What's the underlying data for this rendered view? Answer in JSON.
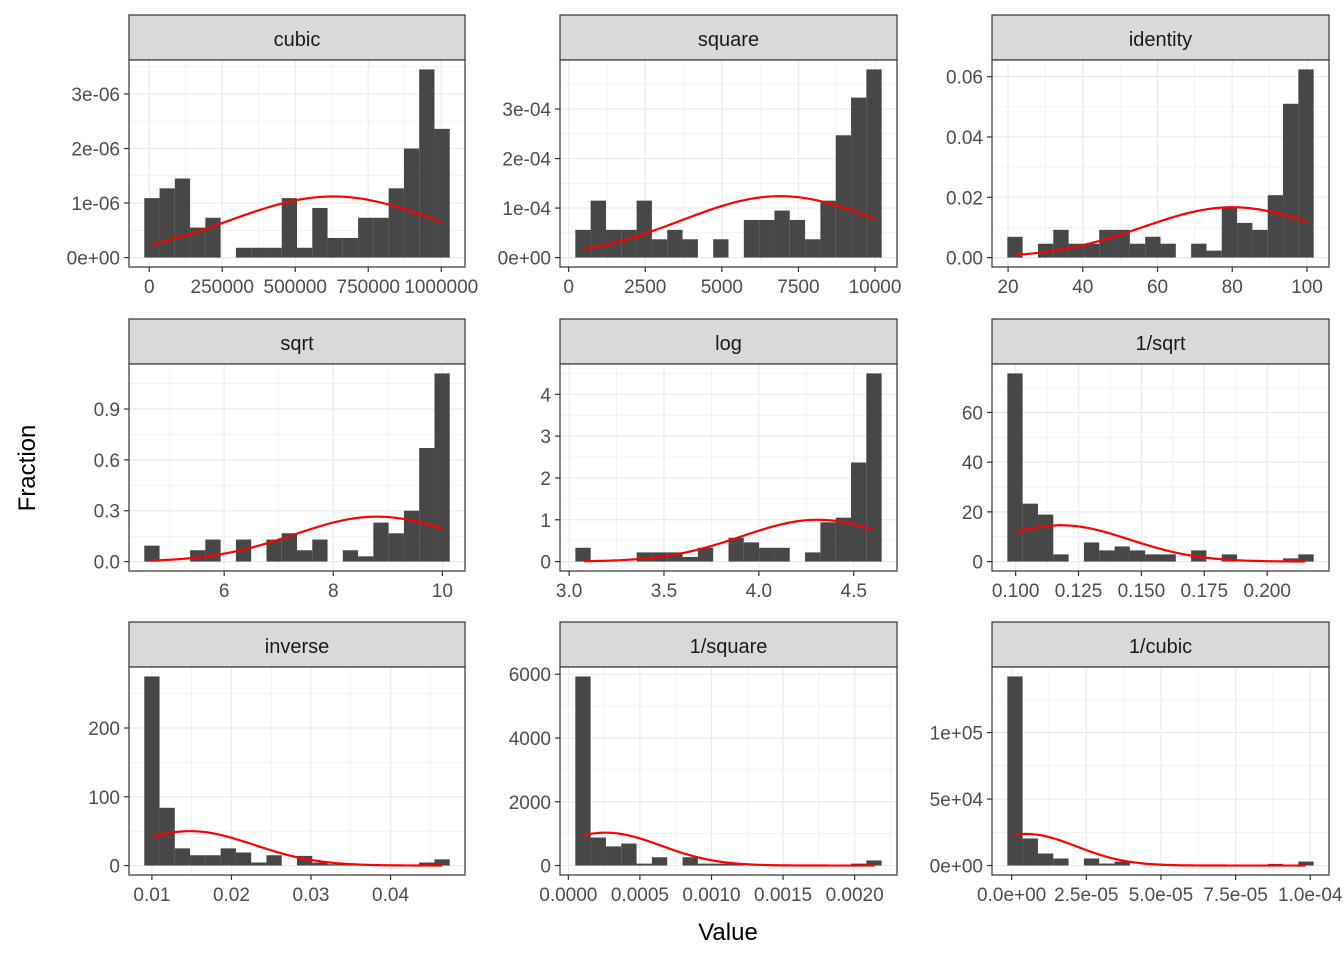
{
  "figure": {
    "xlabel": "Value",
    "ylabel": "Fraction",
    "colors": {
      "bar": "#474747",
      "curve": "#FF0000",
      "strip": "#D9D9D9",
      "grid": "#EBEBEB",
      "border": "#333333"
    }
  },
  "chart_data": [
    {
      "type": "bar",
      "title": "cubic",
      "bin_start": -17000,
      "bin_width": 52300,
      "values": [
        1.09e-06,
        1.27e-06,
        1.45e-06,
        5.5e-07,
        7.3e-07,
        0,
        1.8e-07,
        1.8e-07,
        1.8e-07,
        1.09e-06,
        1.8e-07,
        9.1e-07,
        3.6e-07,
        3.6e-07,
        7.3e-07,
        7.3e-07,
        1.27e-06,
        2e-06,
        3.45e-06,
        2.36e-06
      ],
      "xlim": [
        -69300,
        1081300
      ],
      "ylim": [
        -1.725e-07,
        3.6225e-06
      ],
      "x_ticks": [
        0,
        250000,
        500000,
        750000,
        1000000
      ],
      "x_tick_labels": [
        "0",
        "250000",
        "500000",
        "750000",
        "1000000"
      ],
      "y_ticks": [
        0,
        1e-06,
        2e-06,
        3e-06
      ],
      "y_tick_labels": [
        "0e+00",
        "1e-06",
        "2e-06",
        "3e-06"
      ],
      "normal_curve": {
        "mean": 630000,
        "sd": 356000,
        "from": 9000,
        "to": 1000000
      },
      "grid": true
    },
    {
      "type": "bar",
      "title": "square",
      "bin_start": 217,
      "bin_width": 500,
      "values": [
        5.6e-05,
        0.000115,
        5.6e-05,
        5.6e-05,
        0.000115,
        3.7e-05,
        5.6e-05,
        3.7e-05,
        0,
        3.7e-05,
        0,
        7.6e-05,
        7.6e-05,
        9.5e-05,
        7.6e-05,
        3.7e-05,
        0.000115,
        0.000247,
        0.000323,
        0.00038
      ],
      "xlim": [
        -283,
        10717
      ],
      "ylim": [
        -1.9e-05,
        0.000399
      ],
      "x_ticks": [
        0,
        2500,
        5000,
        7500,
        10000
      ],
      "x_tick_labels": [
        "0",
        "2500",
        "5000",
        "7500",
        "10000"
      ],
      "y_ticks": [
        0,
        0.0001,
        0.0002,
        0.0003
      ],
      "y_tick_labels": [
        "0e+00",
        "1e-04",
        "2e-04",
        "3e-04"
      ],
      "normal_curve": {
        "mean": 6900,
        "sd": 3217,
        "from": 500,
        "to": 10000
      },
      "grid": true
    },
    {
      "type": "bar",
      "title": "identity",
      "bin_start": 19.8,
      "bin_width": 4.1,
      "values": [
        0.0069,
        0,
        0.0046,
        0.0092,
        0.0046,
        0.0046,
        0.0092,
        0.0092,
        0.0046,
        0.0069,
        0.0046,
        0,
        0.0046,
        0.0023,
        0.0165,
        0.0115,
        0.0092,
        0.0207,
        0.051,
        0.0624
      ],
      "xlim": [
        15.7,
        105.9
      ],
      "ylim": [
        -0.00312,
        0.06552
      ],
      "x_ticks": [
        20,
        40,
        60,
        80,
        100
      ],
      "x_tick_labels": [
        "20",
        "40",
        "60",
        "80",
        "100"
      ],
      "y_ticks": [
        0,
        0.02,
        0.04,
        0.06
      ],
      "y_tick_labels": [
        "0.00",
        "0.02",
        "0.04",
        "0.06"
      ],
      "normal_curve": {
        "mean": 80,
        "sd": 23.9,
        "from": 22,
        "to": 100
      },
      "grid": true
    },
    {
      "type": "bar",
      "title": "sqrt",
      "bin_start": 4.535,
      "bin_width": 0.28,
      "values": [
        0.094,
        0,
        0,
        0.067,
        0.13,
        0,
        0.13,
        0,
        0.13,
        0.167,
        0.067,
        0.13,
        0,
        0.067,
        0.031,
        0.23,
        0.167,
        0.3,
        0.67,
        1.11
      ],
      "xlim": [
        4.255,
        10.415
      ],
      "ylim": [
        -0.0555,
        1.1655
      ],
      "x_ticks": [
        6,
        8,
        10
      ],
      "x_tick_labels": [
        "6",
        "8",
        "10"
      ],
      "y_ticks": [
        0,
        0.3,
        0.6,
        0.9
      ],
      "y_tick_labels": [
        "0.0",
        "0.3",
        "0.6",
        "0.9"
      ],
      "normal_curve": {
        "mean": 8.8,
        "sd": 1.505,
        "from": 4.64,
        "to": 10
      },
      "grid": true
    },
    {
      "type": "bar",
      "title": "log",
      "bin_start": 3.033,
      "bin_width": 0.0807,
      "values": [
        0.33,
        0,
        0,
        0,
        0.22,
        0.22,
        0.22,
        0.11,
        0.33,
        0,
        0.57,
        0.46,
        0.33,
        0.33,
        0,
        0.22,
        0.94,
        1.05,
        2.37,
        4.5
      ],
      "xlim": [
        2.952,
        4.728
      ],
      "ylim": [
        -0.225,
        4.725
      ],
      "x_ticks": [
        3.0,
        3.5,
        4.0,
        4.5
      ],
      "x_tick_labels": [
        "3.0",
        "3.5",
        "4.0",
        "4.5"
      ],
      "y_ticks": [
        0,
        1,
        2,
        3,
        4
      ],
      "y_tick_labels": [
        "0",
        "1",
        "2",
        "3",
        "4"
      ],
      "normal_curve": {
        "mean": 4.31,
        "sd": 0.399,
        "from": 3.08,
        "to": 4.6
      },
      "grid": true
    },
    {
      "type": "bar",
      "title": "1/sqrt",
      "bin_start": 0.0967,
      "bin_width": 0.00609,
      "values": [
        75.7,
        23.3,
        18.9,
        2.9,
        0,
        7.7,
        4.5,
        6.1,
        4.5,
        2.9,
        2.9,
        0,
        4.5,
        0,
        2.9,
        0,
        0,
        0,
        1.3,
        2.9
      ],
      "xlim": [
        0.0906,
        0.2246
      ],
      "ylim": [
        -3.785,
        79.485
      ],
      "x_ticks": [
        0.1,
        0.125,
        0.15,
        0.175,
        0.2
      ],
      "x_tick_labels": [
        "0.100",
        "0.125",
        "0.150",
        "0.175",
        "0.200"
      ],
      "y_ticks": [
        0,
        20,
        40,
        60
      ],
      "y_tick_labels": [
        "0",
        "20",
        "40",
        "60"
      ],
      "normal_curve": {
        "mean": 0.118,
        "sd": 0.0273,
        "from": 0.1,
        "to": 0.215
      },
      "grid": true
    },
    {
      "type": "bar",
      "title": "inverse",
      "bin_start": 0.00904,
      "bin_width": 0.00192,
      "values": [
        275,
        84,
        25,
        15,
        15,
        25,
        19,
        4.4,
        15,
        0,
        14,
        4.4,
        2,
        2,
        0,
        0,
        0,
        0,
        4.4,
        9
      ],
      "xlim": [
        0.00712,
        0.04936
      ],
      "ylim": [
        -13.75,
        288.75
      ],
      "x_ticks": [
        0.01,
        0.02,
        0.03,
        0.04
      ],
      "x_tick_labels": [
        "0.01",
        "0.02",
        "0.03",
        "0.04"
      ],
      "y_ticks": [
        0,
        100,
        200
      ],
      "y_tick_labels": [
        "0",
        "100",
        "200"
      ],
      "normal_curve": {
        "mean": 0.0148,
        "sd": 0.00798,
        "from": 0.01,
        "to": 0.0465
      },
      "grid": true
    },
    {
      "type": "bar",
      "title": "1/square",
      "bin_start": 4.88e-05,
      "bin_width": 0.000107,
      "values": [
        5930,
        880,
        600,
        690,
        60,
        260,
        0,
        260,
        60,
        60,
        60,
        0,
        0,
        0,
        0,
        0,
        0,
        0,
        60,
        160
      ],
      "xlim": [
        -5.82e-05,
        0.0022958
      ],
      "ylim": [
        -296.5,
        6226.5
      ],
      "x_ticks": [
        0,
        0.0005,
        0.001,
        0.0015,
        0.002
      ],
      "x_tick_labels": [
        "0.0000",
        "0.0005",
        "0.0010",
        "0.0015",
        "0.0020"
      ],
      "y_ticks": [
        0,
        2000,
        4000,
        6000
      ],
      "y_tick_labels": [
        "0",
        "2000",
        "4000",
        "6000"
      ],
      "normal_curve": {
        "mean": 0.00026,
        "sd": 0.000387,
        "from": 0.0001,
        "to": 0.00214
      },
      "grid": true
    },
    {
      "type": "bar",
      "title": "1/cubic",
      "bin_start": -1.45e-06,
      "bin_width": 5.13e-06,
      "values": [
        142200,
        20350,
        9050,
        5280,
        0,
        5280,
        1500,
        3000,
        0,
        0,
        0,
        0,
        0,
        0,
        0,
        0,
        0,
        1250,
        0,
        3000
      ],
      "xlim": [
        -6.58e-06,
        0.00010628
      ],
      "ylim": [
        -7110,
        149310
      ],
      "x_ticks": [
        0,
        2.5e-05,
        5e-05,
        7.5e-05,
        0.0001
      ],
      "x_tick_labels": [
        "0.0e+00",
        "2.5e-05",
        "5.0e-05",
        "7.5e-05",
        "1.0e-04"
      ],
      "y_ticks": [
        0,
        50000,
        100000
      ],
      "y_tick_labels": [
        "0e+00",
        "5e+04",
        "1e+05"
      ],
      "normal_curve": {
        "mean": 4.9e-06,
        "sd": 1.68e-05,
        "from": 1.3e-06,
        "to": 9.84e-05
      },
      "grid": true
    }
  ]
}
